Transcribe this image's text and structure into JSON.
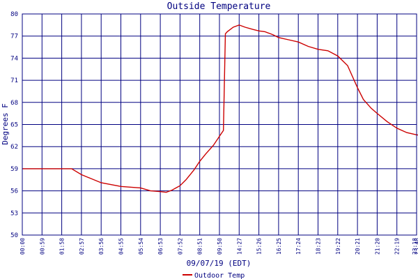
{
  "chart_data": {
    "type": "line",
    "title": "Outside Temperature",
    "xlabel": "09/07/19 (EDT)",
    "ylabel": "Degrees F",
    "ylim": [
      50,
      80
    ],
    "y_ticks": [
      "50",
      "53",
      "56",
      "59",
      "62",
      "65",
      "68",
      "71",
      "74",
      "77",
      "80"
    ],
    "x_ticks": [
      "00:00",
      "00:59",
      "01:58",
      "02:57",
      "03:56",
      "04:55",
      "05:54",
      "06:53",
      "07:52",
      "08:51",
      "09:50",
      "14:27",
      "15:26",
      "16:25",
      "17:24",
      "18:23",
      "19:22",
      "20:21",
      "21:20",
      "22:19",
      "23:18",
      "23:48"
    ],
    "grid": true,
    "legend_position": "bottom-left",
    "colors": {
      "background": "#ffffff",
      "grid": "#000080",
      "axis_text": "#000080",
      "series": "#cc0000"
    },
    "series": [
      {
        "name": "Outdoor Temp",
        "x_index": [
          0,
          1,
          2,
          2.5,
          3,
          4,
          5,
          6,
          6.5,
          7,
          7.3,
          7.6,
          8,
          8.3,
          8.7,
          9,
          9.3,
          9.7,
          10,
          10.2,
          10.3,
          10.4,
          10.7,
          11,
          11.3,
          11.7,
          12,
          12.3,
          12.7,
          13,
          13.5,
          14,
          14.5,
          15,
          15.5,
          16,
          16.5,
          17,
          17.3,
          17.7,
          18,
          18.5,
          19,
          19.5,
          20,
          20.5,
          21,
          21.3
        ],
        "values": [
          59.0,
          59.0,
          59.0,
          59.0,
          58.2,
          57.1,
          56.6,
          56.4,
          56.0,
          55.9,
          55.8,
          56.1,
          56.7,
          57.5,
          58.8,
          60.0,
          61.0,
          62.2,
          63.4,
          64.2,
          77.3,
          77.6,
          78.2,
          78.5,
          78.2,
          77.9,
          77.7,
          77.6,
          77.2,
          76.8,
          76.5,
          76.2,
          75.6,
          75.2,
          75.0,
          74.3,
          73.0,
          70.0,
          68.4,
          67.2,
          66.5,
          65.4,
          64.5,
          63.9,
          63.6,
          63.4,
          63.0,
          62.9
        ]
      }
    ]
  }
}
